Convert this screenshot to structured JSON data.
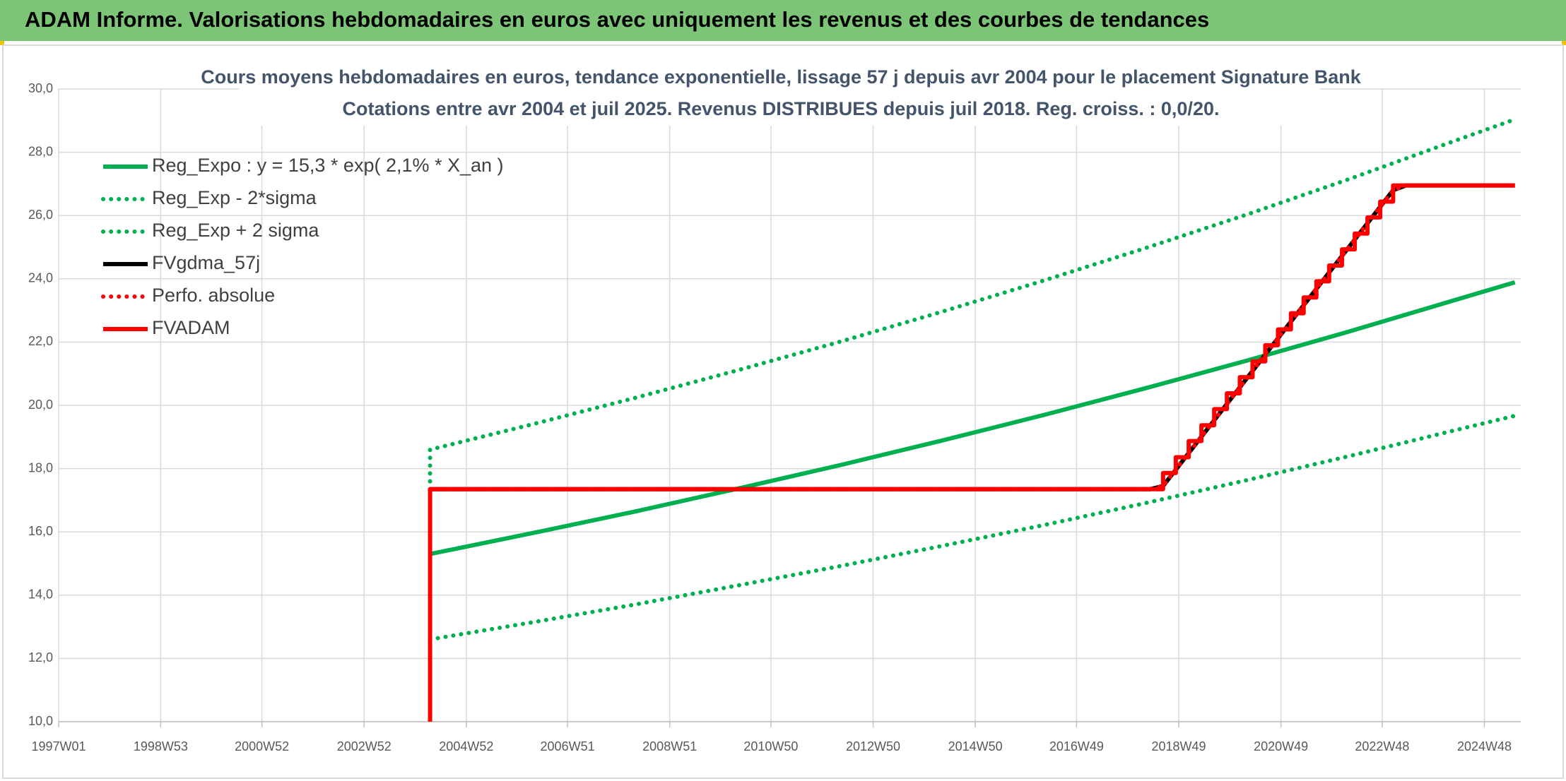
{
  "chart_data": {
    "type": "line",
    "header": "ADAM Informe. Valorisations hebdomadaires en euros avec uniquement les revenus et des courbes de tendances",
    "title": "Cours moyens hebdomadaires en euros, tendance exponentielle, lissage 57 j depuis avr 2004 pour le placement Signature Bank",
    "subtitle": "Cotations entre avr 2004 et juil 2025. Revenus DISTRIBUES depuis juil 2018. Reg. croiss. : 0,0/20.",
    "xlim": [
      "1997W01",
      "2025W33"
    ],
    "xticks": [
      "1997W01",
      "1998W53",
      "2000W52",
      "2002W52",
      "2004W52",
      "2006W51",
      "2008W51",
      "2010W50",
      "2012W50",
      "2014W50",
      "2016W49",
      "2018W49",
      "2020W49",
      "2022W48",
      "2024W48"
    ],
    "ylim": [
      10,
      30
    ],
    "yticks": [
      {
        "value": 10,
        "label": "10,0"
      },
      {
        "value": 12,
        "label": "12,0"
      },
      {
        "value": 14,
        "label": "14,0"
      },
      {
        "value": 16,
        "label": "16,0"
      },
      {
        "value": 18,
        "label": "18,0"
      },
      {
        "value": 20,
        "label": "20,0"
      },
      {
        "value": 22,
        "label": "22,0"
      },
      {
        "value": 24,
        "label": "24,0"
      },
      {
        "value": 26,
        "label": "26,0"
      },
      {
        "value": 28,
        "label": "28,0"
      },
      {
        "value": 30,
        "label": "30,0"
      }
    ],
    "grid": true,
    "legend": "top-left",
    "series": [
      {
        "name": "Reg_Expo : y = 15,3 * exp( 2,1% *  X_an )",
        "color": "#00b050",
        "dash": "solid",
        "x": [
          "2004W15",
          "2006W15",
          "2008W15",
          "2010W15",
          "2012W15",
          "2014W15",
          "2016W15",
          "2018W15",
          "2020W15",
          "2022W15",
          "2024W15",
          "2025W27"
        ],
        "values": [
          15.3,
          15.96,
          16.64,
          17.36,
          18.1,
          18.88,
          19.69,
          20.54,
          21.42,
          22.34,
          23.3,
          23.89
        ]
      },
      {
        "name": "Reg_Exp - 2*sigma",
        "color": "#00b050",
        "dash": "dotted",
        "x": [
          "2004W15",
          "2006W15",
          "2008W15",
          "2010W15",
          "2012W15",
          "2014W15",
          "2016W15",
          "2018W15",
          "2020W15",
          "2022W15",
          "2024W15",
          "2025W27"
        ],
        "values": [
          12.6,
          13.14,
          13.7,
          14.3,
          14.91,
          15.55,
          16.21,
          16.91,
          17.64,
          18.4,
          19.19,
          19.67
        ]
      },
      {
        "name": "Reg_Exp + 2 sigma",
        "color": "#00b050",
        "dash": "dotted",
        "x": [
          "2004W15",
          "2004W15",
          "2006W15",
          "2008W15",
          "2010W15",
          "2012W15",
          "2014W15",
          "2016W15",
          "2018W15",
          "2020W15",
          "2022W15",
          "2024W15",
          "2025W27"
        ],
        "values": [
          17.35,
          18.6,
          19.4,
          20.23,
          21.1,
          22.0,
          22.95,
          23.94,
          24.97,
          26.04,
          27.16,
          28.33,
          29.04
        ]
      },
      {
        "name": "FVgdma_57j",
        "color": "#000000",
        "dash": "solid",
        "x": [
          "2004W15",
          "2018W20",
          "2018W33",
          "2023W07",
          "2023W20",
          "2025W27"
        ],
        "values": [
          17.35,
          17.35,
          17.45,
          26.8,
          26.95,
          26.95
        ]
      },
      {
        "name": "Perfo. absolue",
        "color": "#ff0000",
        "dash": "dotted",
        "x": [
          "2004W15",
          "2018W20",
          "2018W33",
          "2023W07",
          "2023W20",
          "2025W27"
        ],
        "values": [
          17.35,
          17.35,
          17.45,
          26.8,
          26.95,
          26.95
        ]
      },
      {
        "name": "FVADAM",
        "color": "#ff0000",
        "dash": "solid",
        "x": [
          "2004W15",
          "2004W15",
          "2018W33",
          "2018W33",
          "2018W46",
          "2018W46",
          "2019W07",
          "2019W07",
          "2019W20",
          "2019W20",
          "2019W33",
          "2019W33",
          "2019W46",
          "2019W46",
          "2020W07",
          "2020W07",
          "2020W20",
          "2020W20",
          "2020W33",
          "2020W33",
          "2020W46",
          "2020W46",
          "2021W07",
          "2021W07",
          "2021W20",
          "2021W20",
          "2021W33",
          "2021W33",
          "2021W46",
          "2021W46",
          "2022W07",
          "2022W07",
          "2022W20",
          "2022W20",
          "2022W33",
          "2022W33",
          "2022W46",
          "2022W46",
          "2023W07",
          "2023W07",
          "2025W27"
        ],
        "values": [
          10.0,
          17.35,
          17.35,
          17.86,
          17.86,
          18.36,
          18.36,
          18.87,
          18.87,
          19.37,
          19.37,
          19.88,
          19.88,
          20.38,
          20.38,
          20.89,
          20.89,
          21.39,
          21.39,
          21.9,
          21.9,
          22.4,
          22.4,
          22.91,
          22.91,
          23.41,
          23.41,
          23.92,
          23.92,
          24.42,
          24.42,
          24.93,
          24.93,
          25.43,
          25.43,
          25.94,
          25.94,
          26.44,
          26.44,
          26.95,
          26.95
        ]
      }
    ]
  }
}
